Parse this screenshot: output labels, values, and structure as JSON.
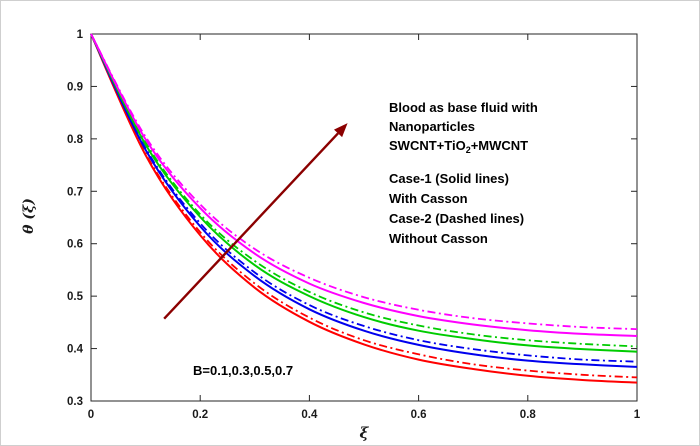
{
  "chart_data": {
    "type": "line",
    "title": "",
    "xlabel": "ξ",
    "ylabel": "θ (ξ)",
    "xlim": [
      0,
      1
    ],
    "ylim": [
      0.3,
      1
    ],
    "xticks": [
      0,
      0.2,
      0.4,
      0.6,
      0.8,
      1
    ],
    "xtick_labels": [
      "0",
      "0.2",
      "0.4",
      "0.6",
      "0.8",
      "1"
    ],
    "yticks": [
      0.3,
      0.4,
      0.5,
      0.6,
      0.7,
      0.8,
      0.9,
      1
    ],
    "ytick_labels": [
      "0.3",
      "0.4",
      "0.5",
      "0.6",
      "0.7",
      "0.8",
      "0.9",
      "1"
    ],
    "grid": false,
    "legend_position": "none",
    "axis_color": "#262626",
    "x": [
      0,
      0.1,
      0.2,
      0.3,
      0.4,
      0.5,
      0.6,
      0.7,
      0.8,
      0.9,
      1
    ],
    "series": [
      {
        "id": "b01-solid",
        "name": "B=0.1 Case-1 With Casson",
        "color": "#ff0000",
        "style": "solid",
        "values": [
          1,
          0.769,
          0.616,
          0.516,
          0.451,
          0.408,
          0.379,
          0.361,
          0.348,
          0.34,
          0.335
        ]
      },
      {
        "id": "b01-dashed",
        "name": "B=0.1 Case-2 Without Casson",
        "color": "#ff0000",
        "style": "dashdot",
        "values": [
          1,
          0.772,
          0.622,
          0.524,
          0.459,
          0.416,
          0.389,
          0.37,
          0.358,
          0.35,
          0.345
        ]
      },
      {
        "id": "b03-solid",
        "name": "B=0.3 Case-1 With Casson",
        "color": "#0000ee",
        "style": "solid",
        "values": [
          1,
          0.779,
          0.633,
          0.538,
          0.475,
          0.434,
          0.407,
          0.389,
          0.377,
          0.37,
          0.365
        ]
      },
      {
        "id": "b03-dashed",
        "name": "B=0.3 Case-2 Without Casson",
        "color": "#0000ee",
        "style": "dashdot",
        "values": [
          1,
          0.782,
          0.639,
          0.545,
          0.483,
          0.443,
          0.416,
          0.399,
          0.387,
          0.379,
          0.375
        ]
      },
      {
        "id": "b05-solid",
        "name": "B=0.5 Case-1 With Casson",
        "color": "#00cc00",
        "style": "solid",
        "values": [
          1,
          0.789,
          0.651,
          0.559,
          0.5,
          0.46,
          0.434,
          0.418,
          0.406,
          0.399,
          0.394
        ]
      },
      {
        "id": "b05-dashed",
        "name": "B=0.5 Case-2 Without Casson",
        "color": "#00cc00",
        "style": "dashdot",
        "values": [
          1,
          0.793,
          0.656,
          0.567,
          0.508,
          0.469,
          0.444,
          0.427,
          0.416,
          0.409,
          0.404
        ]
      },
      {
        "id": "b07-solid",
        "name": "B=0.7 Case-1 With Casson",
        "color": "#ff00ff",
        "style": "solid",
        "values": [
          1,
          0.799,
          0.668,
          0.581,
          0.524,
          0.487,
          0.462,
          0.446,
          0.435,
          0.428,
          0.424
        ]
      },
      {
        "id": "b07-dashed",
        "name": "B=0.7 Case-2 Without Casson",
        "color": "#ff00ff",
        "style": "dashdot",
        "values": [
          1,
          0.804,
          0.675,
          0.59,
          0.535,
          0.498,
          0.474,
          0.458,
          0.448,
          0.441,
          0.437
        ]
      }
    ],
    "arrow": {
      "x1": 0.134,
      "y1": 0.457,
      "x2": 0.47,
      "y2": 0.83,
      "color": "#8b0000",
      "meaning": "direction of increasing B"
    },
    "annotations": {
      "base_fluid": {
        "line1": "Blood as base fluid with",
        "line2": "Nanoparticles",
        "line3_pre": "SWCNT+TiO",
        "line3_sub": "2",
        "line3_post": "+MWCNT"
      },
      "cases": {
        "line1": "Case-1 (Solid lines)",
        "line2": "With Casson",
        "line3": "Case-2 (Dashed lines)",
        "line4": "Without Casson"
      },
      "b_values": "B=0.1,0.3,0.5,0.7"
    }
  }
}
